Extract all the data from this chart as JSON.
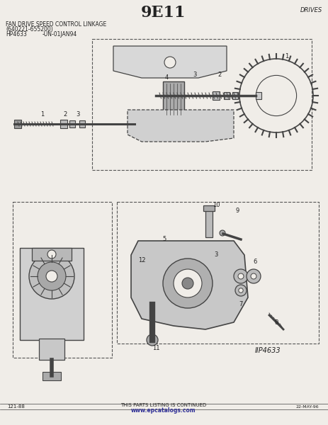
{
  "title": "9E11",
  "title_fontsize": 16,
  "title_fontweight": "bold",
  "top_right_label": "DRIVES",
  "header_line1": "FAN DRIVE SPEED CONTROL LINKAGE",
  "header_line2": "(640221-655200)",
  "header_col1": "HP4633",
  "header_col2": "-UN-01JAN94",
  "bottom_left": "121-88",
  "bottom_center": "THIS PARTS LISTING IS CONTINUED",
  "bottom_url": "www.epcatalogs.com",
  "bottom_right": "22-MAY-96",
  "fig_ref": "IIP4633",
  "bg_color": "#f0ede8",
  "line_color": "#444444",
  "text_color": "#222222",
  "dashed_color": "#555555"
}
